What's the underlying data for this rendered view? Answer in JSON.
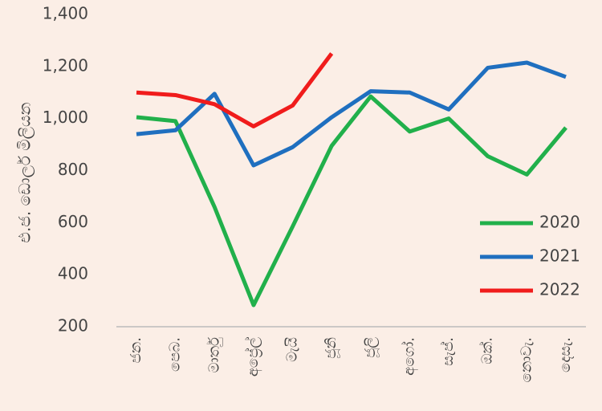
{
  "chart_data": {
    "type": "line",
    "ylabel": "එ.ජ. ඩොලර් මිලියන",
    "categories": [
      "ජන.",
      "පෙබ.",
      "මාර්තු",
      "අප්‍රේල්",
      "මැයි",
      "ජූනි",
      "ජූලි",
      "අගෝ.",
      "සැප්.",
      "ඔක්.",
      "නොවැ.",
      "දෙසැ."
    ],
    "series": [
      {
        "name": "2020",
        "color": "#21b04b",
        "values": [
          1005,
          990,
          660,
          283,
          585,
          895,
          1085,
          950,
          1000,
          855,
          785,
          965
        ]
      },
      {
        "name": "2021",
        "color": "#1f6fbf",
        "values": [
          940,
          955,
          1095,
          820,
          890,
          1005,
          1105,
          1100,
          1035,
          1195,
          1215,
          1160
        ]
      },
      {
        "name": "2022",
        "color": "#f01c1c",
        "values": [
          1100,
          1090,
          1055,
          970,
          1050,
          1250,
          null,
          null,
          null,
          null,
          null,
          null
        ]
      }
    ],
    "ylim": [
      200,
      1400
    ],
    "yticks": [
      200,
      400,
      600,
      800,
      {
        "value": 1000,
        "label": "1,000"
      },
      {
        "value": 1200,
        "label": "1,200"
      },
      {
        "value": 1400,
        "label": "1,400"
      }
    ],
    "grid": false,
    "legend": "right"
  }
}
